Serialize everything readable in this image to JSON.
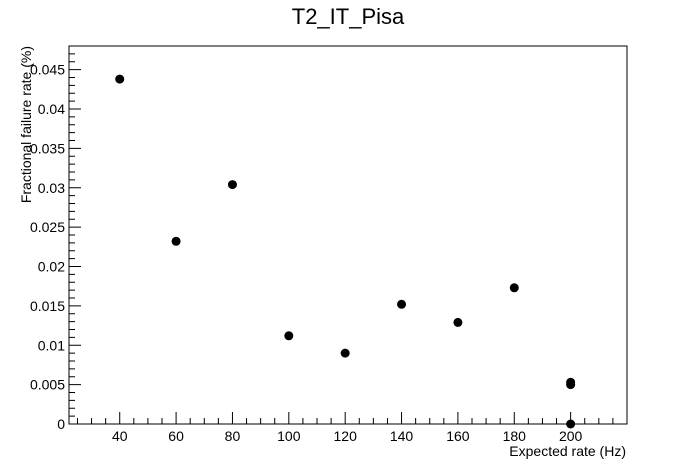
{
  "chart_data": {
    "type": "scatter",
    "title": "T2_IT_Pisa",
    "xlabel": "Expected rate (Hz)",
    "ylabel": "Fractional failure rate (%)",
    "xlim": [
      22,
      220
    ],
    "ylim": [
      0,
      0.048
    ],
    "x_ticks": [
      40,
      60,
      80,
      100,
      120,
      140,
      160,
      180,
      200
    ],
    "y_ticks": [
      0,
      0.005,
      0.01,
      0.015,
      0.02,
      0.025,
      0.03,
      0.035,
      0.04,
      0.045
    ],
    "x_tick_labels": [
      "40",
      "60",
      "80",
      "100",
      "120",
      "140",
      "160",
      "180",
      "200"
    ],
    "y_tick_labels": [
      "0",
      "0.005",
      "0.01",
      "0.015",
      "0.02",
      "0.025",
      "0.03",
      "0.035",
      "0.04",
      "0.045"
    ],
    "grid": false,
    "legend": "none",
    "marker_color": "#000000",
    "points": [
      {
        "x": 40,
        "y": 0.0438
      },
      {
        "x": 60,
        "y": 0.0232
      },
      {
        "x": 80,
        "y": 0.0304
      },
      {
        "x": 100,
        "y": 0.0112
      },
      {
        "x": 120,
        "y": 0.009
      },
      {
        "x": 140,
        "y": 0.0152
      },
      {
        "x": 160,
        "y": 0.0129
      },
      {
        "x": 180,
        "y": 0.0173
      },
      {
        "x": 200,
        "y": 0.0053
      },
      {
        "x": 200,
        "y": 0.005
      },
      {
        "x": 200,
        "y": 0.0
      }
    ]
  }
}
